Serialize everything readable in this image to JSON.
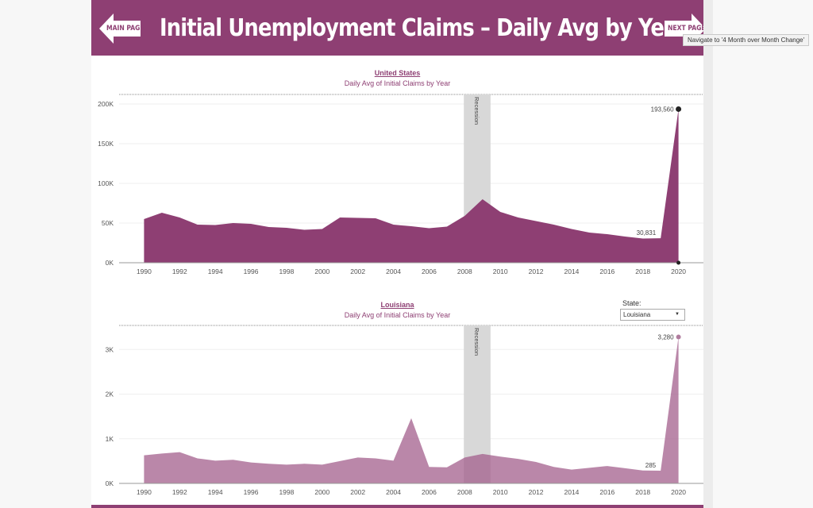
{
  "page": {
    "title": "Initial Unemployment Claims – Daily Avg by Year",
    "main_page_label": "MAIN PAGE",
    "next_page_label": "NEXT PAGE",
    "tooltip": "Navigate to '4 Month over Month Change'",
    "state_filter_label": "State:",
    "state_filter_value": "Louisiana",
    "colors": {
      "brand": "#8e3f73",
      "us_fill": "#8e3f73",
      "state_fill": "#b07c9e",
      "recession": "#d8d8d8"
    }
  },
  "chart_data": [
    {
      "type": "area",
      "title": "United States",
      "subtitle": "Daily Avg of Initial Claims by Year",
      "x": [
        1990,
        1991,
        1992,
        1993,
        1994,
        1995,
        1996,
        1997,
        1998,
        1999,
        2000,
        2001,
        2002,
        2003,
        2004,
        2005,
        2006,
        2007,
        2008,
        2009,
        2010,
        2011,
        2012,
        2013,
        2014,
        2015,
        2016,
        2017,
        2018,
        2019,
        2020
      ],
      "values": [
        55000,
        63000,
        57000,
        48000,
        47500,
        50000,
        49000,
        45000,
        44000,
        41500,
        42500,
        57000,
        56500,
        56000,
        48000,
        46000,
        43500,
        45500,
        59000,
        80000,
        64000,
        57000,
        52500,
        48000,
        42500,
        38000,
        36000,
        33000,
        30500,
        30831,
        193560
      ],
      "ylim": [
        0,
        205000
      ],
      "yticks": [
        0,
        50000,
        100000,
        150000,
        200000
      ],
      "ytick_labels": [
        "0K",
        "50K",
        "100K",
        "150K",
        "200K"
      ],
      "xticks": [
        1990,
        1992,
        1994,
        1996,
        1998,
        2000,
        2002,
        2004,
        2006,
        2008,
        2010,
        2012,
        2014,
        2016,
        2018,
        2020
      ],
      "recession": {
        "from": 2007.95,
        "to": 2009.45,
        "label": "Recession"
      },
      "annotations": [
        {
          "x": 2020,
          "y": 193560,
          "label": "193,560"
        },
        {
          "x": 2019,
          "y": 30831,
          "label": "30,831"
        }
      ],
      "grid": true
    },
    {
      "type": "area",
      "title": "Louisiana",
      "subtitle": "Daily Avg of Initial Claims by Year",
      "x": [
        1990,
        1991,
        1992,
        1993,
        1994,
        1995,
        1996,
        1997,
        1998,
        1999,
        2000,
        2001,
        2002,
        2003,
        2004,
        2005,
        2006,
        2007,
        2008,
        2009,
        2010,
        2011,
        2012,
        2013,
        2014,
        2015,
        2016,
        2017,
        2018,
        2019,
        2020
      ],
      "values": [
        630,
        670,
        700,
        560,
        510,
        530,
        470,
        440,
        420,
        440,
        420,
        500,
        580,
        560,
        510,
        1460,
        370,
        360,
        580,
        660,
        600,
        550,
        480,
        370,
        310,
        350,
        390,
        340,
        290,
        285,
        3280
      ],
      "ylim": [
        0,
        3450
      ],
      "yticks": [
        0,
        1000,
        2000,
        3000
      ],
      "ytick_labels": [
        "0K",
        "1K",
        "2K",
        "3K"
      ],
      "xticks": [
        1990,
        1992,
        1994,
        1996,
        1998,
        2000,
        2002,
        2004,
        2006,
        2008,
        2010,
        2012,
        2014,
        2016,
        2018,
        2020
      ],
      "recession": {
        "from": 2007.95,
        "to": 2009.45,
        "label": "Recession"
      },
      "annotations": [
        {
          "x": 2020,
          "y": 3280,
          "label": "3,280"
        },
        {
          "x": 2019,
          "y": 285,
          "label": "285"
        }
      ],
      "grid": true
    }
  ]
}
